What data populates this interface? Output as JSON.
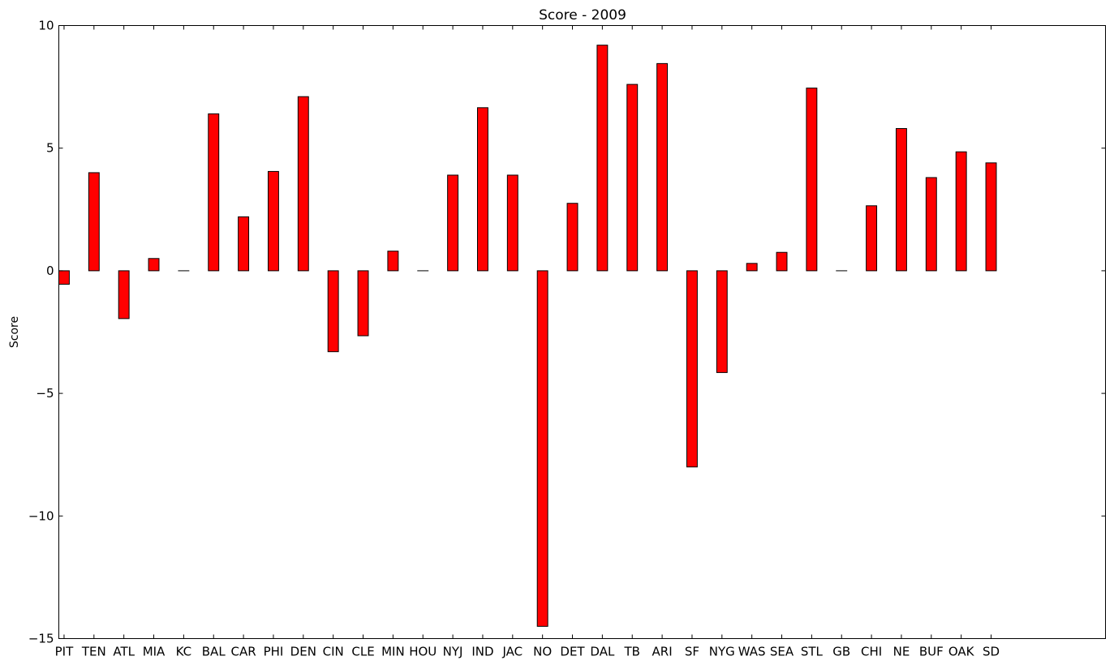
{
  "chart_data": {
    "type": "bar",
    "title": "Score - 2009",
    "xlabel": "",
    "ylabel": "Score",
    "ylim": [
      -15,
      10
    ],
    "yticks": [
      -15,
      -10,
      -5,
      0,
      5,
      10
    ],
    "grid": false,
    "categories": [
      "PIT",
      "TEN",
      "ATL",
      "MIA",
      "KC",
      "BAL",
      "CAR",
      "PHI",
      "DEN",
      "CIN",
      "CLE",
      "MIN",
      "HOU",
      "NYJ",
      "IND",
      "JAC",
      "NO",
      "DET",
      "DAL",
      "TB",
      "ARI",
      "SF",
      "NYG",
      "WAS",
      "SEA",
      "STL",
      "GB",
      "CHI",
      "NE",
      "BUF",
      "OAK",
      "SD"
    ],
    "values": [
      -0.55,
      4.0,
      -1.95,
      0.5,
      0.0,
      6.4,
      2.2,
      4.05,
      7.1,
      -3.3,
      -2.65,
      0.8,
      0.0,
      3.9,
      6.65,
      3.9,
      -14.5,
      2.75,
      9.2,
      7.6,
      8.45,
      -8.0,
      -4.15,
      0.3,
      0.75,
      7.45,
      0.0,
      2.65,
      5.8,
      3.8,
      4.85,
      4.4
    ],
    "colors": {
      "bar": "#ff0000",
      "edge": "#000000"
    }
  }
}
